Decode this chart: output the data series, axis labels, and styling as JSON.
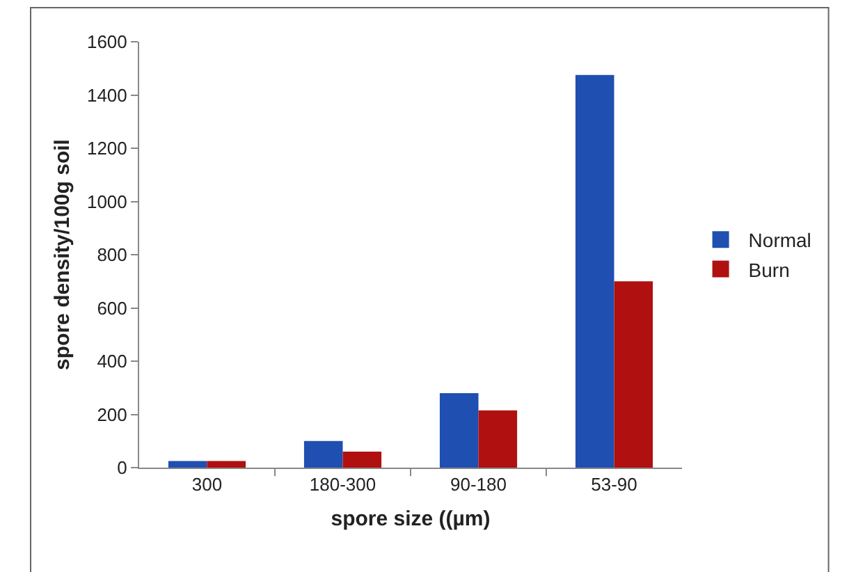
{
  "chart_data": {
    "type": "bar",
    "xlabel": "spore size ((µm)",
    "ylabel": "spore density/100g soil",
    "categories": [
      "300",
      "180-300",
      "90-180",
      "53-90"
    ],
    "series": [
      {
        "name": "Normal",
        "color": "#1f4fb0",
        "values": [
          25,
          100,
          280,
          1475
        ]
      },
      {
        "name": "Burn",
        "color": "#b01010",
        "values": [
          25,
          60,
          215,
          700
        ]
      }
    ],
    "ylim": [
      0,
      1600
    ],
    "yticks": [
      0,
      200,
      400,
      600,
      800,
      1000,
      1200,
      1400,
      1600
    ],
    "grid": false,
    "legend": "right"
  }
}
